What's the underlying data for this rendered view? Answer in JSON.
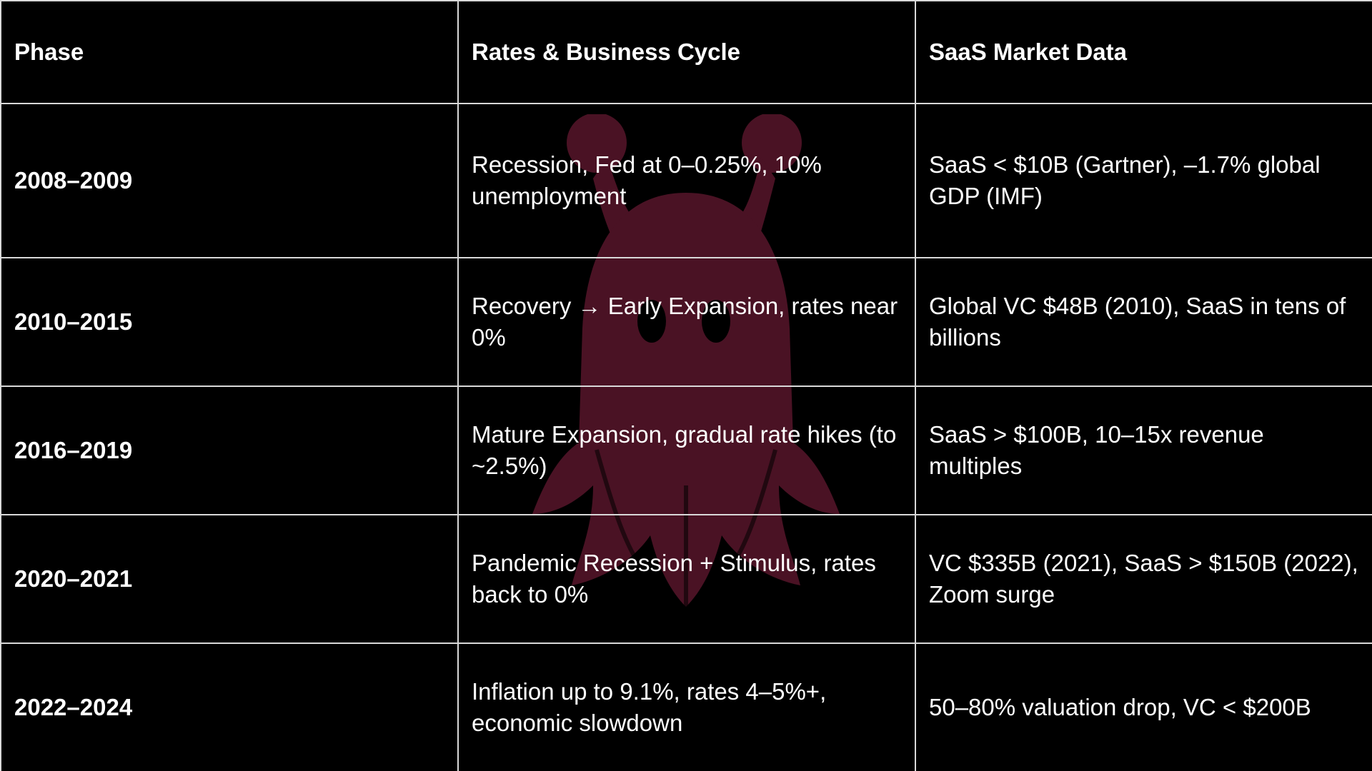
{
  "table": {
    "headers": [
      "Phase",
      "Rates & Business Cycle",
      "SaaS Market Data"
    ],
    "rows": [
      {
        "phase": "2008–2009",
        "rates": "Recession, Fed at 0–0.25%, 10% unemployment",
        "saas": "SaaS < $10B (Gartner), –1.7% global GDP (IMF)"
      },
      {
        "phase": "2010–2015",
        "rates": "Recovery → Early Expansion, rates near 0%",
        "saas": "Global VC $48B (2010), SaaS in tens of billions"
      },
      {
        "phase": "2016–2019",
        "rates": "Mature Expansion, gradual rate hikes (to ~2.5%)",
        "saas": "SaaS > $100B, 10–15x revenue multiples"
      },
      {
        "phase": "2020–2021",
        "rates": "Pandemic Recession + Stimulus, rates back to 0%",
        "saas": "VC $335B (2021), SaaS > $150B (2022), Zoom surge"
      },
      {
        "phase": "2022–2024",
        "rates": "Inflation up to 9.1%, rates 4–5%+, economic slowdown",
        "saas": "50–80% valuation drop, VC < $200B"
      }
    ]
  },
  "colors": {
    "background": "#000000",
    "text": "#ffffff",
    "grid": "#d9d9d9",
    "watermark": "#4a1224"
  },
  "watermark": {
    "icon": "ghost-icon"
  }
}
